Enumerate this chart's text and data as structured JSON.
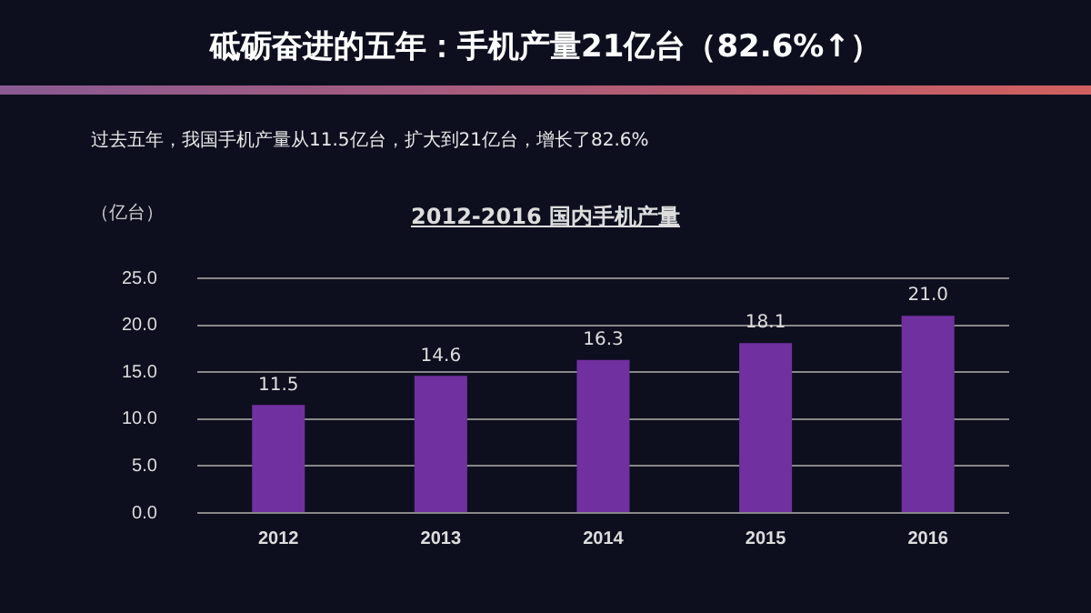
{
  "chart_data": {
    "type": "bar",
    "subtitle": "砥砺奋进的五年：手机产量21亿台（82.6%↑）",
    "title": "2012-2016 国内手机产量",
    "ylabel": "（亿台）",
    "annotations": [
      "过去五年，我国手机产量从11.5亿台，扩大到21亿台，增长了82.6%"
    ],
    "categories": [
      "2012",
      "2013",
      "2014",
      "2015",
      "2016"
    ],
    "values": [
      11.5,
      14.6,
      16.3,
      18.1,
      21.0
    ],
    "value_labels": [
      "11.5",
      "14.6",
      "16.3",
      "18.1",
      "21.0"
    ],
    "color": "#7030a0",
    "ylim": [
      0,
      25
    ],
    "yticks": [
      {
        "value": 0,
        "label": "0.0"
      },
      {
        "value": 5,
        "label": "5.0"
      },
      {
        "value": 10,
        "label": "10.0"
      },
      {
        "value": 15,
        "label": "15.0"
      },
      {
        "value": 20,
        "label": "20.0"
      },
      {
        "value": 25,
        "label": "25.0"
      }
    ],
    "grid": "y",
    "legend": false
  }
}
